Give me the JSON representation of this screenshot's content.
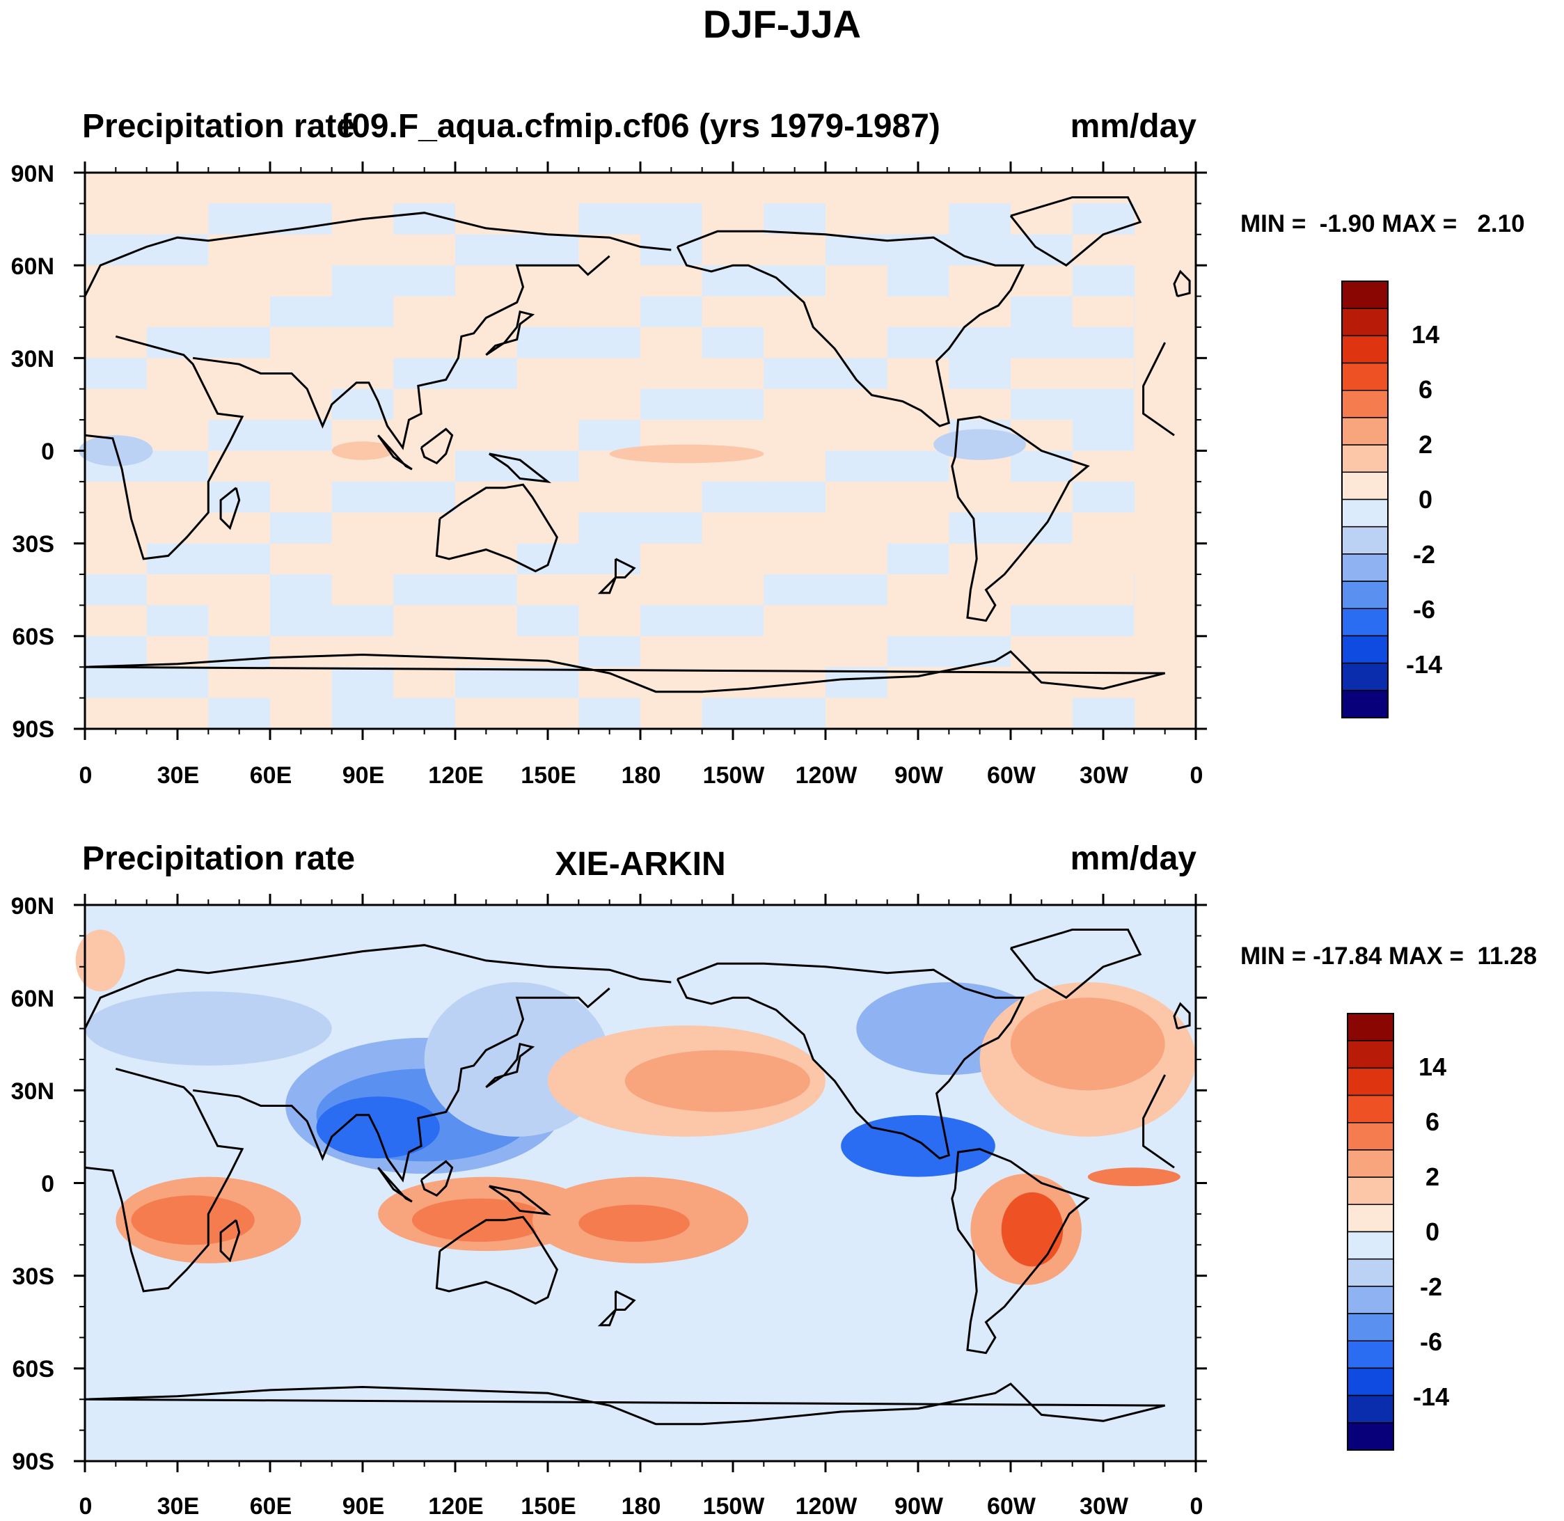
{
  "title": "DJF-JJA",
  "contour_levels": [
    "14",
    "6",
    "2",
    "0",
    "-2",
    "-6",
    "-14"
  ],
  "colors": {
    "scale": [
      "#08007a",
      "#0a2dae",
      "#0f4be0",
      "#2a6cf2",
      "#5a90f0",
      "#8fb2f2",
      "#bcd2f5",
      "#dcebfb",
      "#fde8d8",
      "#fbc7a8",
      "#f8a47d",
      "#f57c4f",
      "#ee5124",
      "#de3510",
      "#b81c08",
      "#8a0602"
    ],
    "coast": "#000000"
  },
  "chart_data": [
    {
      "type": "heatmap",
      "panel": "top",
      "left_title": "Precipitation rate",
      "center_title": "f09.F_aqua.cfmip.cf06 (yrs 1979-1987)",
      "right_title": "mm/day",
      "min_label": "MIN =",
      "min_value": "-1.90",
      "max_label": "MAX =",
      "max_value": "2.10",
      "min": -1.9,
      "max": 2.1,
      "variable": "precipitation rate difference DJF minus JJA",
      "x_tick_labels": [
        "0",
        "30E",
        "60E",
        "90E",
        "120E",
        "150E",
        "180",
        "150W",
        "120W",
        "90W",
        "60W",
        "30W",
        "0"
      ],
      "y_tick_labels": [
        "90N",
        "60N",
        "30N",
        "0",
        "30S",
        "60S",
        "90S"
      ],
      "xlim": [
        0,
        360
      ],
      "ylim": [
        -90,
        90
      ]
    },
    {
      "type": "heatmap",
      "panel": "bottom",
      "left_title": "Precipitation rate",
      "center_title": "XIE-ARKIN",
      "right_title": "mm/day",
      "min_label": "MIN =",
      "min_value": "-17.84",
      "max_label": "MAX =",
      "max_value": "11.28",
      "min": -17.84,
      "max": 11.28,
      "variable": "precipitation rate difference DJF minus JJA",
      "x_tick_labels": [
        "0",
        "30E",
        "60E",
        "90E",
        "120E",
        "150E",
        "180",
        "150W",
        "120W",
        "90W",
        "60W",
        "30W",
        "0"
      ],
      "y_tick_labels": [
        "90N",
        "60N",
        "30N",
        "0",
        "30S",
        "60S",
        "90S"
      ],
      "xlim": [
        0,
        360
      ],
      "ylim": [
        -90,
        90
      ]
    }
  ]
}
